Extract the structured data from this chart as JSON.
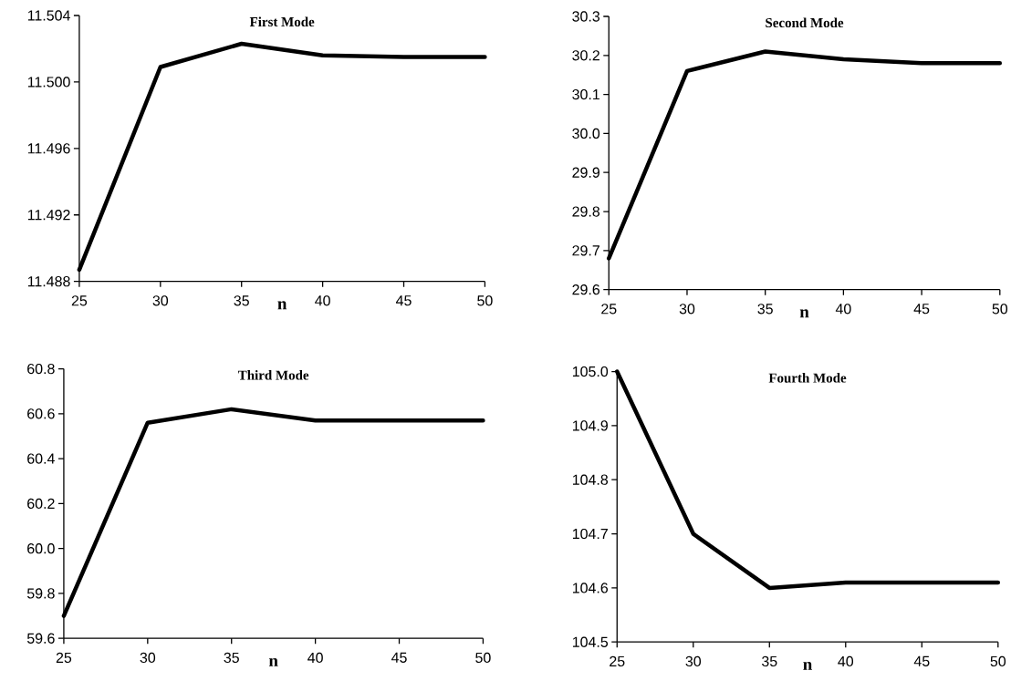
{
  "chart_data": [
    {
      "type": "line",
      "title": "First Mode",
      "xlabel": "n",
      "x": [
        25,
        30,
        35,
        40,
        45,
        50
      ],
      "color": "#000000",
      "marker": "none",
      "line_style": "solid",
      "grid": false,
      "values": [
        11.4887,
        11.5009,
        11.5023,
        11.5016,
        11.5015,
        11.5015
      ],
      "xlim": [
        25,
        50
      ],
      "xticks": [
        25,
        30,
        35,
        40,
        45,
        50
      ],
      "ylim": [
        11.488,
        11.504
      ],
      "yticks": [
        11.488,
        11.492,
        11.496,
        {
          "value": 11.5,
          "label": "11.500"
        },
        11.504
      ]
    },
    {
      "type": "line",
      "title": "Second Mode",
      "xlabel": "n",
      "x": [
        25,
        30,
        35,
        40,
        45,
        50
      ],
      "color": "#000000",
      "marker": "none",
      "line_style": "solid",
      "grid": false,
      "values": [
        29.68,
        30.16,
        30.21,
        30.19,
        30.18,
        30.18
      ],
      "xlim": [
        25,
        50
      ],
      "xticks": [
        25,
        30,
        35,
        40,
        45,
        50
      ],
      "ylim": [
        29.6,
        30.3
      ],
      "yticks": [
        29.6,
        29.7,
        29.8,
        29.9,
        {
          "value": 30,
          "label": "30.0"
        },
        30.1,
        30.2,
        30.3
      ]
    },
    {
      "type": "line",
      "title": "Third Mode",
      "xlabel": "n",
      "x": [
        25,
        30,
        35,
        40,
        45,
        50
      ],
      "color": "#000000",
      "marker": "none",
      "line_style": "solid",
      "grid": false,
      "values": [
        59.7,
        60.56,
        60.62,
        60.57,
        60.57,
        60.57
      ],
      "xlim": [
        25,
        50
      ],
      "xticks": [
        25,
        30,
        35,
        40,
        45,
        50
      ],
      "ylim": [
        59.6,
        60.8
      ],
      "yticks": [
        59.6,
        59.8,
        {
          "value": 60,
          "label": "60.0"
        },
        60.2,
        60.4,
        60.6,
        60.8
      ]
    },
    {
      "type": "line",
      "title": "Fourth Mode",
      "xlabel": "n",
      "x": [
        25,
        30,
        35,
        40,
        45,
        50
      ],
      "color": "#000000",
      "marker": "none",
      "line_style": "solid",
      "grid": false,
      "values": [
        105.0,
        104.7,
        104.6,
        104.61,
        104.61,
        104.61
      ],
      "xlim": [
        25,
        50
      ],
      "xticks": [
        25,
        30,
        35,
        40,
        45,
        50
      ],
      "ylim": [
        104.5,
        105.0
      ],
      "yticks": [
        104.5,
        104.6,
        104.7,
        104.8,
        104.9,
        {
          "value": 105,
          "label": "105.0"
        }
      ]
    }
  ]
}
